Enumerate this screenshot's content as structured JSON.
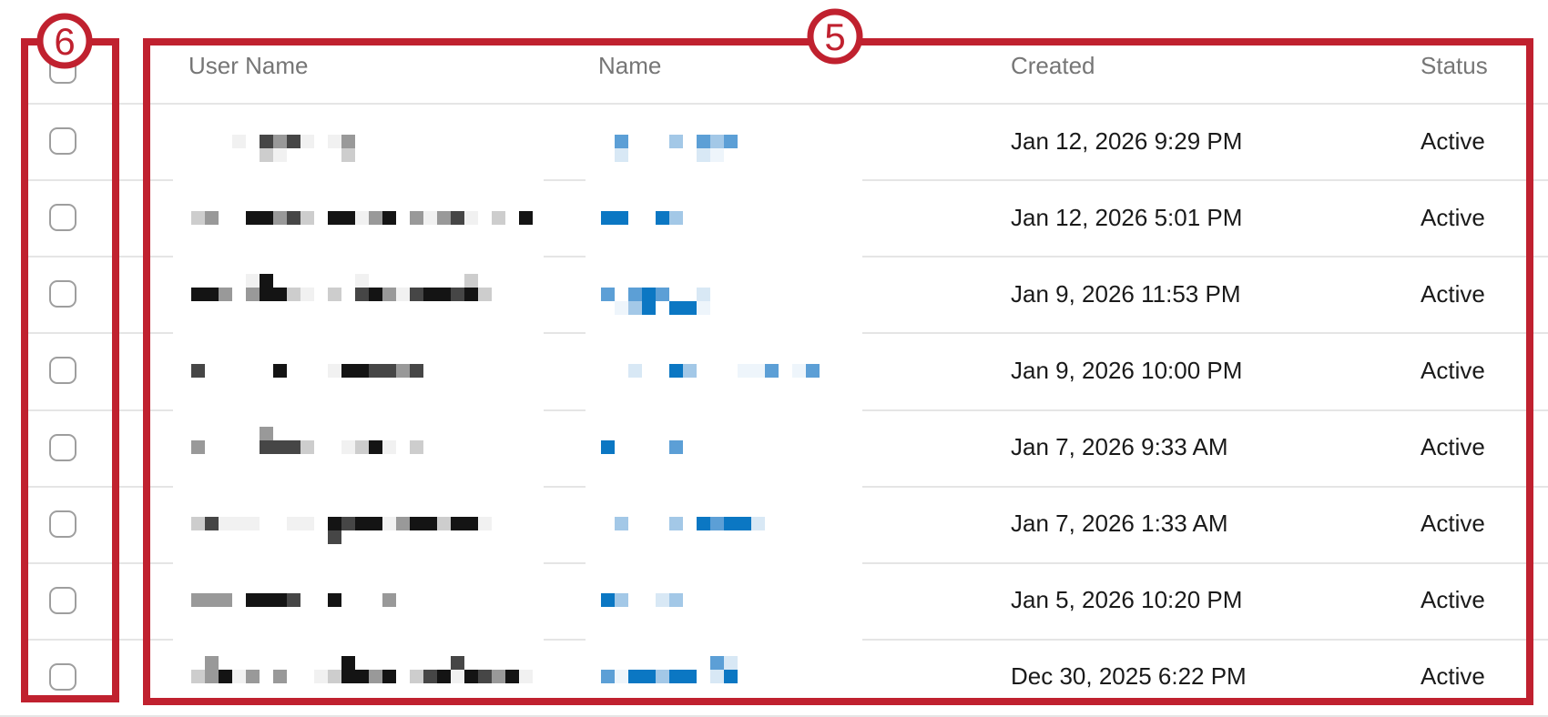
{
  "colors": {
    "bg": "#ffffff",
    "annotation": "#c0212f",
    "sep": "#e5e5e5",
    "header-text": "#767676",
    "body-text": "#1a1a1a",
    "checkbox-border": "#9e9e9e"
  },
  "annotations": {
    "box_6": {
      "label": "6",
      "target": "selection-checkbox-column"
    },
    "box_5": {
      "label": "5",
      "target": "user-table-content"
    }
  },
  "redaction_palette": {
    "k": "#141414",
    "d": "#464646",
    "g": "#999999",
    "l": "#cdcdcd",
    "w": "#f1f1f1",
    "B": "#0b77c3",
    "m": "#5c9fd6",
    "p": "#a3c8e7",
    "L": "#d8e8f5",
    "W": "#eef5fb"
  },
  "table": {
    "columns": [
      {
        "id": "user_name",
        "label": "User Name",
        "redacted": true
      },
      {
        "id": "name",
        "label": "Name",
        "redacted": true
      },
      {
        "id": "created",
        "label": "Created"
      },
      {
        "id": "status",
        "label": "Status"
      }
    ],
    "select_all": {
      "checked": false
    },
    "rows": [
      {
        "created": "Jan 12, 2026 9:29 PM",
        "status": "Active",
        "selected": false,
        "user_redacted": [
          {
            "dy": 0,
            "segs": [
              [
                255,
                "w"
              ],
              [
                285,
                "dgdw"
              ],
              [
                360,
                "wg"
              ]
            ]
          },
          {
            "dy": 1,
            "segs": [
              [
                285,
                "lw"
              ],
              [
                375,
                "l"
              ]
            ]
          }
        ],
        "name_redacted": [
          {
            "dy": 0,
            "segs": [
              [
                675,
                "m"
              ],
              [
                735,
                "p"
              ],
              [
                765,
                "mpm"
              ]
            ]
          },
          {
            "dy": 1,
            "segs": [
              [
                675,
                "L"
              ],
              [
                765,
                "LW"
              ]
            ]
          }
        ]
      },
      {
        "created": "Jan 12, 2026 5:01 PM",
        "status": "Active",
        "selected": false,
        "user_redacted": [
          {
            "dy": 0,
            "segs": [
              [
                210,
                "lg"
              ],
              [
                270,
                "kkgdl"
              ],
              [
                360,
                "kkwgk"
              ],
              [
                450,
                "gwgdw"
              ],
              [
                540,
                "l"
              ],
              [
                570,
                "k"
              ]
            ]
          }
        ],
        "name_redacted": [
          {
            "dy": 0,
            "segs": [
              [
                660,
                "BB"
              ],
              [
                720,
                "Bp"
              ]
            ]
          }
        ]
      },
      {
        "created": "Jan 9, 2026 11:53 PM",
        "status": "Active",
        "selected": false,
        "user_redacted": [
          {
            "dy": -1,
            "segs": [
              [
                270,
                "wk"
              ],
              [
                390,
                "w"
              ],
              [
                510,
                "l"
              ]
            ]
          },
          {
            "dy": 0,
            "segs": [
              [
                210,
                "kkg"
              ],
              [
                270,
                "gkklw"
              ],
              [
                360,
                "l"
              ],
              [
                390,
                "dkgwdkkdkl"
              ]
            ]
          }
        ],
        "name_redacted": [
          {
            "dy": 0,
            "segs": [
              [
                660,
                "m"
              ],
              [
                690,
                "mBm"
              ],
              [
                765,
                "L"
              ]
            ]
          },
          {
            "dy": 1,
            "segs": [
              [
                675,
                "W"
              ],
              [
                690,
                "pB"
              ],
              [
                735,
                "BB"
              ],
              [
                765,
                "W"
              ]
            ]
          }
        ]
      },
      {
        "created": "Jan 9, 2026 10:00 PM",
        "status": "Active",
        "selected": false,
        "user_redacted": [
          {
            "dy": 0,
            "segs": [
              [
                210,
                "d"
              ],
              [
                300,
                "k"
              ],
              [
                360,
                "wkkddgd"
              ]
            ]
          }
        ],
        "name_redacted": [
          {
            "dy": 0,
            "segs": [
              [
                690,
                "L"
              ],
              [
                735,
                "Bp"
              ],
              [
                810,
                "WWm"
              ],
              [
                870,
                "Wm"
              ]
            ]
          }
        ]
      },
      {
        "created": "Jan 7, 2026 9:33 AM",
        "status": "Active",
        "selected": false,
        "user_redacted": [
          {
            "dy": -1,
            "segs": [
              [
                285,
                "g"
              ]
            ]
          },
          {
            "dy": 0,
            "segs": [
              [
                210,
                "g"
              ],
              [
                285,
                "dddl"
              ],
              [
                375,
                "wlkw"
              ],
              [
                450,
                "l"
              ]
            ]
          }
        ],
        "name_redacted": [
          {
            "dy": 0,
            "segs": [
              [
                660,
                "B"
              ],
              [
                735,
                "m"
              ]
            ]
          }
        ]
      },
      {
        "created": "Jan 7, 2026 1:33 AM",
        "status": "Active",
        "selected": false,
        "user_redacted": [
          {
            "dy": 0,
            "segs": [
              [
                210,
                "ldwww"
              ],
              [
                315,
                "ww"
              ],
              [
                360,
                "kdkkwgkklkk"
              ],
              [
                525,
                "w"
              ]
            ]
          },
          {
            "dy": 1,
            "segs": [
              [
                360,
                "d"
              ]
            ]
          }
        ],
        "name_redacted": [
          {
            "dy": 0,
            "segs": [
              [
                675,
                "p"
              ],
              [
                735,
                "p"
              ],
              [
                765,
                "BmBB"
              ],
              [
                825,
                "L"
              ]
            ]
          }
        ]
      },
      {
        "created": "Jan 5, 2026 10:20 PM",
        "status": "Active",
        "selected": false,
        "user_redacted": [
          {
            "dy": 0,
            "segs": [
              [
                210,
                "ggg"
              ],
              [
                270,
                "kkkd"
              ],
              [
                360,
                "k"
              ],
              [
                420,
                "g"
              ]
            ]
          }
        ],
        "name_redacted": [
          {
            "dy": 0,
            "segs": [
              [
                660,
                "Bp"
              ],
              [
                720,
                "Lp"
              ]
            ]
          }
        ]
      },
      {
        "created": "Dec 30, 2025 6:22 PM",
        "status": "Active",
        "selected": false,
        "user_redacted": [
          {
            "dy": -1,
            "segs": [
              [
                225,
                "g"
              ],
              [
                375,
                "k"
              ],
              [
                495,
                "d"
              ]
            ]
          },
          {
            "dy": 0,
            "segs": [
              [
                210,
                "lgkwg"
              ],
              [
                300,
                "g"
              ],
              [
                345,
                "wlkkgk"
              ],
              [
                450,
                "ldkwkdgk"
              ],
              [
                570,
                "w"
              ]
            ]
          }
        ],
        "name_redacted": [
          {
            "dy": -1,
            "segs": [
              [
                780,
                "mL"
              ]
            ]
          },
          {
            "dy": 0,
            "segs": [
              [
                660,
                "m"
              ],
              [
                675,
                "W"
              ],
              [
                690,
                "BBpBB"
              ],
              [
                780,
                "LB"
              ]
            ]
          }
        ]
      }
    ]
  }
}
